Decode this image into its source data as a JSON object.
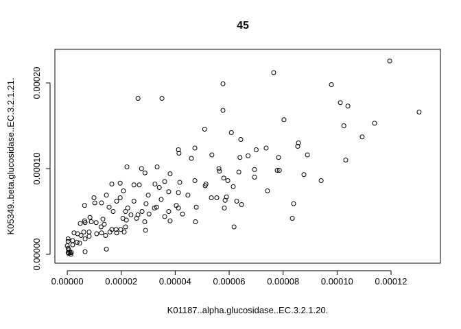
{
  "chart_data": {
    "type": "scatter",
    "title": "45",
    "x_label": "K01187..alpha.glucosidase..EC.3.2.1.20.",
    "y_label": "K05349..beta.glucosidase..EC.3.2.1.21.",
    "xlim": [
      -4.6e-06,
      0.0001383
    ],
    "ylim": [
      -1.04e-05,
      0.0002392
    ],
    "xticks": [
      {
        "value": 0,
        "label": "0.00000"
      },
      {
        "value": 2e-05,
        "label": "0.00002"
      },
      {
        "value": 4e-05,
        "label": "0.00004"
      },
      {
        "value": 6e-05,
        "label": "0.00006"
      },
      {
        "value": 8e-05,
        "label": "0.00008"
      },
      {
        "value": 0.0001,
        "label": "0.00010"
      },
      {
        "value": 0.00012,
        "label": "0.00012"
      }
    ],
    "yticks": [
      {
        "value": 0,
        "label": "0.00000"
      },
      {
        "value": 0.0001,
        "label": "0.00010"
      },
      {
        "value": 0.0002,
        "label": "0.00020"
      }
    ],
    "color": "#000000",
    "x": [
      0.0001195,
      7.65e-05,
      5.77e-05,
      9.79e-05,
      2.62e-05,
      3.51e-05,
      5.77e-05,
      0.0001012,
      0.000104,
      0.0001304,
      8.03e-05,
      0.0001139,
      0.0001025,
      5.09e-05,
      6.08e-05,
      0.0001093,
      6.43e-05,
      8.57e-05,
      8.54e-05,
      7.37e-05,
      7e-05,
      4.12e-05,
      4.14e-05,
      4.73e-05,
      5.36e-05,
      8.9e-05,
      6.4e-05,
      6.7e-05,
      7.83e-05,
      4.6e-05,
      0.0001032,
      2.21e-05,
      6.94e-05,
      5.62e-05,
      2.75e-05,
      3.33e-05,
      7.78e-05,
      7.86e-05,
      5.64e-05,
      6.36e-05,
      2.88e-05,
      3.81e-05,
      8.77e-05,
      5.8e-05,
      6.94e-05,
      3.61e-05,
      4.73e-05,
      9.41e-05,
      1.96e-05,
      1.65e-05,
      2.67e-05,
      3.25e-05,
      4.17e-05,
      5.14e-05,
      5.95e-05,
      6.15e-05,
      2.47e-05,
      3.41e-05,
      5.11e-05,
      7.42e-05,
      2.08e-05,
      3.76e-05,
      4.47e-05,
      4.12e-05,
      3e-05,
      9.9e-06,
      1.45e-05,
      1.96e-05,
      5.54e-05,
      5.9e-05,
      5.85e-05,
      5.34e-05,
      6.28e-05,
      6.46e-05,
      8.39e-05,
      1.02e-05,
      1.27e-05,
      1.83e-05,
      2.47e-05,
      2.92e-05,
      3.48e-05,
      4.04e-05,
      4.12e-05,
      4.78e-05,
      3.31e-05,
      2.24e-05,
      1.55e-05,
      6.4e-06,
      1.7e-05,
      2.16e-05,
      2.77e-05,
      3.23e-05,
      3.76e-05,
      2.36e-05,
      2.62e-05,
      3.03e-05,
      3.61e-05,
      2.57e-05,
      2.06e-05,
      2.19e-05,
      2.87e-05,
      3.81e-05,
      8.34e-05,
      1.32e-05,
      1.07e-05,
      6.4e-06,
      4.8e-06,
      8.4e-06,
      8.9e-06,
      1.37e-05,
      2.16e-05,
      2.9e-05,
      2.11e-05,
      1.98e-05,
      1.81e-05,
      1.65e-05,
      1.83e-05,
      1.25e-05,
      1.58e-05,
      1.27e-05,
      1.42e-05,
      1.09e-05,
      8.1e-06,
      6.1e-06,
      3.8e-06,
      2.5e-06,
      5.1e-06,
      8.1e-06,
      6.6e-06,
      2e-06,
      3.6e-06,
      4.6e-06,
      2e-06,
      3e-07,
      3e-07,
      0,
      3e-07,
      5e-07,
      3e-07,
      5e-07,
      1e-06,
      1.3e-06,
      1.5e-06,
      6.6e-06,
      1.45e-05,
      6.18e-05,
      4.75e-05,
      4.27e-05,
      5.82e-05,
      6.6e-06
    ],
    "y": [
      0.0002256,
      0.000212,
      0.000199,
      0.000198,
      0.000182,
      0.000182,
      0.000168,
      0.000177,
      0.000173,
      0.000166,
      0.000157,
      0.000153,
      0.00015,
      0.000146,
      0.000142,
      0.000137,
      0.000134,
      0.00013,
      0.000126,
      0.000124,
      0.000122,
      0.000122,
      0.000118,
      0.000124,
      0.000116,
      0.000116,
      0.000113,
      0.000115,
      0.000113,
      0.000112,
      0.00011,
      0.000102,
      9.9e-05,
      0.0001,
      0.0001,
      0.000102,
      9.8e-05,
      9.8e-05,
      9.7e-05,
      9.6e-05,
      9.5e-05,
      9.4e-05,
      9.3e-05,
      8.9e-05,
      9e-05,
      8.5e-05,
      8.6e-05,
      8.6e-05,
      8.3e-05,
      8.2e-05,
      8.1e-05,
      8.2e-05,
      8.4e-05,
      8.2e-05,
      8.6e-05,
      7.9e-05,
      8.1e-05,
      7.8e-05,
      8e-05,
      7.4e-05,
      7.4e-05,
      7.3e-05,
      6.9e-05,
      7.2e-05,
      6.9e-05,
      6.6e-05,
      6.9e-05,
      6.6e-05,
      6.6e-05,
      6.7e-05,
      6.3e-05,
      6.6e-05,
      6.2e-05,
      5.8e-05,
      5.9e-05,
      6e-05,
      6e-05,
      6.2e-05,
      6.2e-05,
      5.9e-05,
      6.4e-05,
      5.7e-05,
      5.4e-05,
      5.5e-05,
      5.5e-05,
      5.4e-05,
      5.5e-05,
      5.7e-05,
      5e-05,
      5e-05,
      5e-05,
      5.4e-05,
      5e-05,
      4.6e-05,
      4.6e-05,
      4.7e-05,
      4.4e-05,
      4.2e-05,
      4.2e-05,
      4e-05,
      3.8e-05,
      3.9e-05,
      4.2e-05,
      4.1e-05,
      3.7e-05,
      3.9e-05,
      3.6e-05,
      4.3e-05,
      3.8e-05,
      3.5e-05,
      3.2e-05,
      2.8e-05,
      2.6e-05,
      2.9e-05,
      2.9e-05,
      2.9e-05,
      2.5e-05,
      3.2e-05,
      2.6e-05,
      2.5e-05,
      2.2e-05,
      2.4e-05,
      2.6e-05,
      2.6e-05,
      2.4e-05,
      2.5e-05,
      2.2e-05,
      2.1e-05,
      1.8e-05,
      1.6e-05,
      1.4e-05,
      1.3e-05,
      1.1e-05,
      1.8e-05,
      1.5e-05,
      1e-05,
      7e-06,
      5e-06,
      2e-06,
      1e-06,
      2e-06,
      0,
      2e-06,
      3e-06,
      6e-06,
      3.2e-05,
      3.8e-05,
      4.7e-05,
      5.4e-05,
      3.7e-05
    ]
  }
}
